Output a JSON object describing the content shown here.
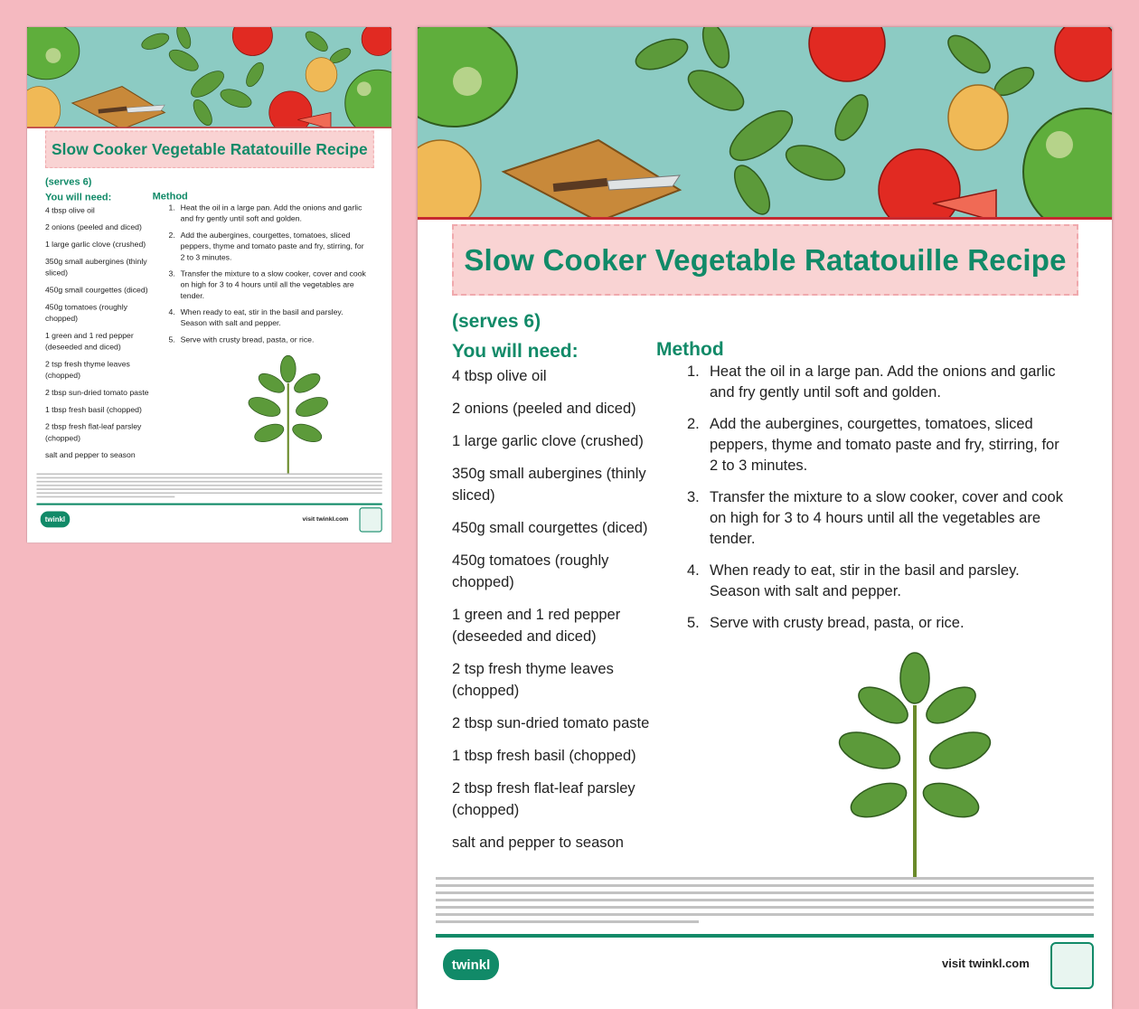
{
  "recipe": {
    "title": "Slow Cooker Vegetable Ratatouille Recipe",
    "serves": "(serves 6)",
    "ingredients_heading": "You will need:",
    "ingredients": [
      "4 tbsp olive oil",
      "2 onions (peeled and diced)",
      "1 large garlic clove (crushed)",
      "350g small aubergines (thinly sliced)",
      "450g small courgettes (diced)",
      "450g tomatoes (roughly chopped)",
      "1 green and 1 red pepper (deseeded and diced)",
      "2 tsp fresh thyme leaves (chopped)",
      "2 tbsp sun-dried tomato paste",
      "1 tbsp fresh basil (chopped)",
      "2 tbsp fresh flat-leaf parsley (chopped)",
      "salt and pepper to season"
    ],
    "method_heading": "Method",
    "method": [
      {
        "n": "1.",
        "text": "Heat the oil in a large pan. Add the onions and garlic and fry gently until soft and golden."
      },
      {
        "n": "2.",
        "text": "Add the aubergines, courgettes, tomatoes, sliced peppers, thyme and tomato paste and fry, stirring, for 2 to 3 minutes."
      },
      {
        "n": "3.",
        "text": "Transfer the mixture to a slow cooker, cover and cook on high for 3 to 4 hours until all the vegetables are tender."
      },
      {
        "n": "4.",
        "text": "When ready to eat, stir in the basil and parsley. Season with salt and pepper."
      },
      {
        "n": "5.",
        "text": "Serve with crusty bread, pasta, or rice."
      }
    ]
  },
  "footer": {
    "logo": "twinkl",
    "visit": "visit twinkl.com"
  },
  "colors": {
    "background": "#f5b9c0",
    "heading_green": "#118a68",
    "banner_teal": "#8ccbc3",
    "accent_red": "#c62a30",
    "title_box_pink": "#f9d3d3"
  }
}
